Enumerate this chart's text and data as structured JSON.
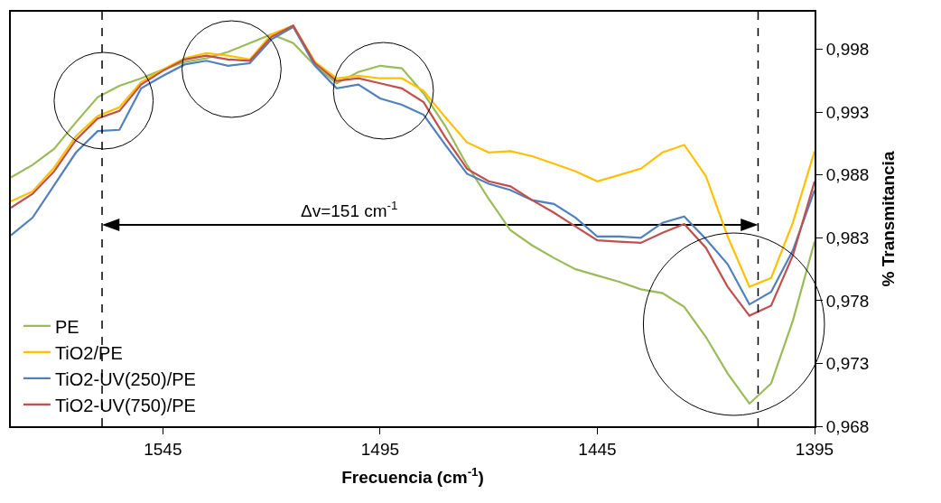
{
  "chart_data": {
    "type": "line",
    "xlabel": "Frecuencia (cm$^{-1}$)",
    "ylabel": "% Transmitancia",
    "x": [
      1580,
      1575,
      1570,
      1565,
      1560,
      1555,
      1550,
      1545,
      1540,
      1535,
      1530,
      1525,
      1520,
      1515,
      1510,
      1505,
      1500,
      1495,
      1490,
      1485,
      1480,
      1475,
      1470,
      1465,
      1460,
      1455,
      1450,
      1445,
      1440,
      1435,
      1430,
      1425,
      1420,
      1415,
      1410,
      1405,
      1400,
      1395
    ],
    "series": [
      {
        "name": "PE",
        "color": "#9bbb59",
        "values": [
          0.9878,
          0.9888,
          0.9901,
          0.9922,
          0.9942,
          0.9951,
          0.9957,
          0.9964,
          0.997,
          0.9973,
          0.9978,
          0.9985,
          0.9992,
          0.9985,
          0.9967,
          0.9953,
          0.9962,
          0.9967,
          0.9965,
          0.9945,
          0.9919,
          0.9888,
          0.9861,
          0.9836,
          0.9824,
          0.9814,
          0.9805,
          0.98,
          0.9795,
          0.9789,
          0.9786,
          0.9775,
          0.9751,
          0.9722,
          0.9698,
          0.9714,
          0.9764,
          0.9827
        ]
      },
      {
        "name": "TiO2/PE",
        "color": "#ffc000",
        "values": [
          0.9859,
          0.9867,
          0.9886,
          0.9911,
          0.9927,
          0.9934,
          0.9954,
          0.9964,
          0.9973,
          0.9977,
          0.9975,
          0.9972,
          0.9992,
          0.9999,
          0.997,
          0.9957,
          0.9959,
          0.9957,
          0.9957,
          0.9947,
          0.9926,
          0.9906,
          0.9898,
          0.9899,
          0.9895,
          0.9889,
          0.9883,
          0.9875,
          0.988,
          0.9885,
          0.9898,
          0.9904,
          0.9879,
          0.9831,
          0.9791,
          0.9798,
          0.9842,
          0.9899
        ]
      },
      {
        "name": "TiO2-UV(250)/PE",
        "color": "#4f81bd",
        "values": [
          0.9832,
          0.9846,
          0.9872,
          0.9898,
          0.9915,
          0.9916,
          0.9949,
          0.9959,
          0.9968,
          0.9971,
          0.9967,
          0.9969,
          0.9988,
          0.9998,
          0.9967,
          0.9949,
          0.9952,
          0.9941,
          0.9936,
          0.9928,
          0.9904,
          0.9881,
          0.9873,
          0.9868,
          0.986,
          0.9857,
          0.9846,
          0.9831,
          0.9831,
          0.983,
          0.9842,
          0.9847,
          0.9829,
          0.9809,
          0.9777,
          0.9787,
          0.982,
          0.9868
        ]
      },
      {
        "name": "TiO2-UV(750)/PE",
        "color": "#c0504d",
        "values": [
          0.9854,
          0.9865,
          0.9883,
          0.9908,
          0.9925,
          0.9931,
          0.9952,
          0.9963,
          0.9972,
          0.9975,
          0.9972,
          0.9971,
          0.999,
          0.9999,
          0.9969,
          0.9955,
          0.9957,
          0.9953,
          0.9949,
          0.9938,
          0.991,
          0.9885,
          0.9875,
          0.9871,
          0.986,
          0.985,
          0.9839,
          0.9828,
          0.9827,
          0.9826,
          0.9834,
          0.9841,
          0.9822,
          0.9791,
          0.9768,
          0.9776,
          0.9816,
          0.9875
        ]
      }
    ],
    "xlim": [
      1580,
      1395
    ],
    "xticks": [
      1545,
      1495,
      1445,
      1395
    ],
    "ylim": [
      0.968,
      1.001
    ],
    "yticks": [
      {
        "value": 0.968,
        "label": "0,968"
      },
      {
        "value": 0.973,
        "label": "0,973"
      },
      {
        "value": 0.978,
        "label": "0,978"
      },
      {
        "value": 0.983,
        "label": "0,983"
      },
      {
        "value": 0.988,
        "label": "0,988"
      },
      {
        "value": 0.993,
        "label": "0,993"
      },
      {
        "value": 0.998,
        "label": "0,998"
      }
    ],
    "ref_lines": [
      {
        "axis": "x",
        "value": 1559,
        "color": "#000000",
        "line_style": "dashed"
      },
      {
        "axis": "x",
        "value": 1408,
        "color": "#000000",
        "line_style": "dashed"
      }
    ],
    "annotations": [
      "Δv=151 cm$^{-1}$"
    ],
    "grid": false,
    "legend": "bottom left",
    "marker": "none",
    "line_style": "solid"
  }
}
